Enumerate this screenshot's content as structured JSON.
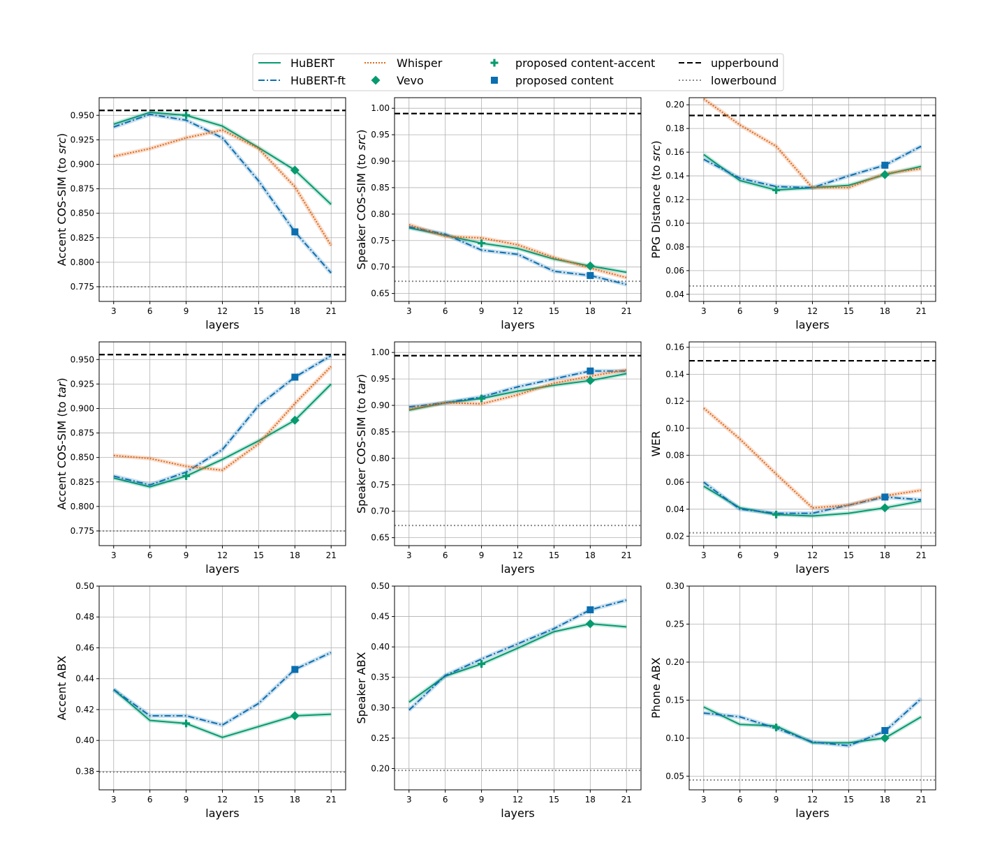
{
  "colors": {
    "hubert": "#069a6f",
    "hubert_ft": "#0a6eb0",
    "whisper": "#e0681a",
    "upperbound": "#000000",
    "lowerbound": "#888888",
    "grid": "#b0b0b0"
  },
  "legend": {
    "items": [
      {
        "key": "hubert",
        "label": "HuBERT",
        "kind": "line",
        "color": "#069a6f",
        "dash": ""
      },
      {
        "key": "hubert_ft",
        "label": "HuBERT-ft",
        "kind": "line",
        "color": "#0a6eb0",
        "dash": "9,3,2,3"
      },
      {
        "key": "whisper",
        "label": "Whisper",
        "kind": "line",
        "color": "#e0681a",
        "dash": "2,2"
      },
      {
        "key": "vevo",
        "label": "Vevo",
        "kind": "diamond",
        "color": "#069a6f",
        "dash": ""
      },
      {
        "key": "prop_ca",
        "label": "proposed content-accent",
        "kind": "plus",
        "color": "#069a6f",
        "dash": ""
      },
      {
        "key": "prop_c",
        "label": "proposed content",
        "kind": "square",
        "color": "#0a6eb0",
        "dash": ""
      },
      {
        "key": "upper",
        "label": "upperbound",
        "kind": "line",
        "color": "#000000",
        "dash": "8,4"
      },
      {
        "key": "lower",
        "label": "lowerbound",
        "kind": "line",
        "color": "#888888",
        "dash": "2,3"
      }
    ]
  },
  "chart_data": [
    {
      "type": "line",
      "ylabel": "Accent COS-SIM (to ",
      "ylabel_em": "src",
      "ylabel_end": ")",
      "xlabel": "layers",
      "x": [
        3,
        6,
        9,
        12,
        15,
        18,
        21
      ],
      "ylim": [
        0.76,
        0.968
      ],
      "yticks": [
        0.775,
        0.8,
        0.825,
        0.85,
        0.875,
        0.9,
        0.925,
        0.95
      ],
      "ytick_labels": [
        "0.775",
        "0.800",
        "0.825",
        "0.850",
        "0.875",
        "0.900",
        "0.925",
        "0.950"
      ],
      "upperbound": 0.955,
      "lowerbound": 0.775,
      "series": [
        {
          "key": "hubert",
          "values": [
            0.941,
            0.953,
            0.95,
            0.939,
            0.917,
            0.894,
            0.859
          ]
        },
        {
          "key": "hubert_ft",
          "values": [
            0.938,
            0.951,
            0.945,
            0.927,
            0.883,
            0.831,
            0.789
          ]
        },
        {
          "key": "whisper",
          "values": [
            0.908,
            0.916,
            0.927,
            0.935,
            0.916,
            0.877,
            0.817
          ]
        }
      ],
      "markers": [
        {
          "kind": "plus",
          "color": "#069a6f",
          "x": 9,
          "y": 0.95
        },
        {
          "kind": "diamond",
          "color": "#069a6f",
          "x": 18,
          "y": 0.894
        },
        {
          "kind": "square",
          "color": "#0a6eb0",
          "x": 18,
          "y": 0.831
        }
      ]
    },
    {
      "type": "line",
      "ylabel": "Speaker COS-SIM (to ",
      "ylabel_em": "src",
      "ylabel_end": ")",
      "xlabel": "layers",
      "x": [
        3,
        6,
        9,
        12,
        15,
        18,
        21
      ],
      "ylim": [
        0.635,
        1.02
      ],
      "yticks": [
        0.65,
        0.7,
        0.75,
        0.8,
        0.85,
        0.9,
        0.95,
        1.0
      ],
      "ytick_labels": [
        "0.65",
        "0.70",
        "0.75",
        "0.80",
        "0.85",
        "0.90",
        "0.95",
        "1.00"
      ],
      "upperbound": 0.99,
      "lowerbound": 0.673,
      "series": [
        {
          "key": "hubert",
          "values": [
            0.774,
            0.76,
            0.745,
            0.735,
            0.715,
            0.702,
            0.69
          ]
        },
        {
          "key": "hubert_ft",
          "values": [
            0.776,
            0.762,
            0.732,
            0.724,
            0.692,
            0.684,
            0.667
          ]
        },
        {
          "key": "whisper",
          "values": [
            0.78,
            0.758,
            0.755,
            0.742,
            0.718,
            0.698,
            0.68
          ]
        }
      ],
      "markers": [
        {
          "kind": "plus",
          "color": "#069a6f",
          "x": 9,
          "y": 0.745
        },
        {
          "kind": "diamond",
          "color": "#069a6f",
          "x": 18,
          "y": 0.702
        },
        {
          "kind": "square",
          "color": "#0a6eb0",
          "x": 18,
          "y": 0.684
        }
      ]
    },
    {
      "type": "line",
      "ylabel": "PPG Distance (to ",
      "ylabel_em": "src",
      "ylabel_end": ")",
      "xlabel": "layers",
      "x": [
        3,
        6,
        9,
        12,
        15,
        18,
        21
      ],
      "ylim": [
        0.034,
        0.206
      ],
      "yticks": [
        0.04,
        0.06,
        0.08,
        0.1,
        0.12,
        0.14,
        0.16,
        0.18,
        0.2
      ],
      "ytick_labels": [
        "0.04",
        "0.06",
        "0.08",
        "0.10",
        "0.12",
        "0.14",
        "0.16",
        "0.18",
        "0.20"
      ],
      "upperbound": 0.191,
      "lowerbound": 0.047,
      "series": [
        {
          "key": "hubert",
          "values": [
            0.158,
            0.136,
            0.128,
            0.13,
            0.132,
            0.141,
            0.148
          ]
        },
        {
          "key": "hubert_ft",
          "values": [
            0.154,
            0.138,
            0.131,
            0.13,
            0.14,
            0.149,
            0.165
          ]
        },
        {
          "key": "whisper",
          "values": [
            0.205,
            0.183,
            0.165,
            0.13,
            0.13,
            0.142,
            0.146
          ]
        }
      ],
      "markers": [
        {
          "kind": "plus",
          "color": "#069a6f",
          "x": 9,
          "y": 0.128
        },
        {
          "kind": "diamond",
          "color": "#069a6f",
          "x": 18,
          "y": 0.141
        },
        {
          "kind": "square",
          "color": "#0a6eb0",
          "x": 18,
          "y": 0.149
        }
      ]
    },
    {
      "type": "line",
      "ylabel": "Accent COS-SIM (to ",
      "ylabel_em": "tar",
      "ylabel_end": ")",
      "xlabel": "layers",
      "x": [
        3,
        6,
        9,
        12,
        15,
        18,
        21
      ],
      "ylim": [
        0.76,
        0.968
      ],
      "yticks": [
        0.775,
        0.8,
        0.825,
        0.85,
        0.875,
        0.9,
        0.925,
        0.95
      ],
      "ytick_labels": [
        "0.775",
        "0.800",
        "0.825",
        "0.850",
        "0.875",
        "0.900",
        "0.925",
        "0.950"
      ],
      "upperbound": 0.955,
      "lowerbound": 0.775,
      "series": [
        {
          "key": "hubert",
          "values": [
            0.829,
            0.82,
            0.831,
            0.848,
            0.867,
            0.888,
            0.925
          ]
        },
        {
          "key": "hubert_ft",
          "values": [
            0.831,
            0.822,
            0.835,
            0.858,
            0.903,
            0.932,
            0.954
          ]
        },
        {
          "key": "whisper",
          "values": [
            0.852,
            0.849,
            0.841,
            0.837,
            0.864,
            0.905,
            0.943
          ]
        }
      ],
      "markers": [
        {
          "kind": "plus",
          "color": "#069a6f",
          "x": 9,
          "y": 0.831
        },
        {
          "kind": "diamond",
          "color": "#069a6f",
          "x": 18,
          "y": 0.888
        },
        {
          "kind": "square",
          "color": "#0a6eb0",
          "x": 18,
          "y": 0.932
        }
      ]
    },
    {
      "type": "line",
      "ylabel": "Speaker COS-SIM (to ",
      "ylabel_em": "tar",
      "ylabel_end": ")",
      "xlabel": "layers",
      "x": [
        3,
        6,
        9,
        12,
        15,
        18,
        21
      ],
      "ylim": [
        0.635,
        1.02
      ],
      "yticks": [
        0.65,
        0.7,
        0.75,
        0.8,
        0.85,
        0.9,
        0.95,
        1.0
      ],
      "ytick_labels": [
        "0.65",
        "0.70",
        "0.75",
        "0.80",
        "0.85",
        "0.90",
        "0.95",
        "1.00"
      ],
      "upperbound": 0.994,
      "lowerbound": 0.673,
      "series": [
        {
          "key": "hubert",
          "values": [
            0.891,
            0.905,
            0.913,
            0.927,
            0.938,
            0.947,
            0.96
          ]
        },
        {
          "key": "hubert_ft",
          "values": [
            0.897,
            0.905,
            0.916,
            0.935,
            0.95,
            0.965,
            0.965
          ]
        },
        {
          "key": "whisper",
          "values": [
            0.893,
            0.905,
            0.903,
            0.92,
            0.942,
            0.955,
            0.967
          ]
        }
      ],
      "markers": [
        {
          "kind": "plus",
          "color": "#069a6f",
          "x": 9,
          "y": 0.913
        },
        {
          "kind": "diamond",
          "color": "#069a6f",
          "x": 18,
          "y": 0.947
        },
        {
          "kind": "square",
          "color": "#0a6eb0",
          "x": 18,
          "y": 0.965
        }
      ]
    },
    {
      "type": "line",
      "ylabel": "WER",
      "ylabel_em": "",
      "ylabel_end": "",
      "xlabel": "layers",
      "x": [
        3,
        6,
        9,
        12,
        15,
        18,
        21
      ],
      "ylim": [
        0.013,
        0.164
      ],
      "yticks": [
        0.02,
        0.04,
        0.06,
        0.08,
        0.1,
        0.12,
        0.14,
        0.16
      ],
      "ytick_labels": [
        "0.02",
        "0.04",
        "0.06",
        "0.08",
        "0.10",
        "0.12",
        "0.14",
        "0.16"
      ],
      "upperbound": 0.15,
      "lowerbound": 0.0225,
      "series": [
        {
          "key": "hubert",
          "values": [
            0.057,
            0.041,
            0.036,
            0.035,
            0.037,
            0.041,
            0.046
          ]
        },
        {
          "key": "hubert_ft",
          "values": [
            0.06,
            0.04,
            0.037,
            0.037,
            0.043,
            0.049,
            0.047
          ]
        },
        {
          "key": "whisper",
          "values": [
            0.115,
            0.092,
            0.066,
            0.041,
            0.043,
            0.05,
            0.054
          ]
        }
      ],
      "markers": [
        {
          "kind": "plus",
          "color": "#069a6f",
          "x": 9,
          "y": 0.036
        },
        {
          "kind": "diamond",
          "color": "#069a6f",
          "x": 18,
          "y": 0.041
        },
        {
          "kind": "square",
          "color": "#0a6eb0",
          "x": 18,
          "y": 0.049
        }
      ]
    },
    {
      "type": "line",
      "ylabel": "Accent ABX",
      "ylabel_em": "",
      "ylabel_end": "",
      "xlabel": "layers",
      "x": [
        3,
        6,
        9,
        12,
        15,
        18,
        21
      ],
      "ylim": [
        0.368,
        0.5
      ],
      "yticks": [
        0.38,
        0.4,
        0.42,
        0.44,
        0.46,
        0.48,
        0.5
      ],
      "ytick_labels": [
        "0.38",
        "0.40",
        "0.42",
        "0.44",
        "0.46",
        "0.48",
        "0.50"
      ],
      "upperbound": null,
      "lowerbound": 0.3795,
      "series": [
        {
          "key": "hubert",
          "values": [
            0.433,
            0.413,
            0.411,
            0.402,
            0.409,
            0.416,
            0.417
          ]
        },
        {
          "key": "hubert_ft",
          "values": [
            0.433,
            0.416,
            0.416,
            0.41,
            0.424,
            0.446,
            0.457
          ]
        }
      ],
      "markers": [
        {
          "kind": "plus",
          "color": "#069a6f",
          "x": 9,
          "y": 0.411
        },
        {
          "kind": "diamond",
          "color": "#069a6f",
          "x": 18,
          "y": 0.416
        },
        {
          "kind": "square",
          "color": "#0a6eb0",
          "x": 18,
          "y": 0.446
        }
      ]
    },
    {
      "type": "line",
      "ylabel": "Speaker ABX",
      "ylabel_em": "",
      "ylabel_end": "",
      "xlabel": "layers",
      "x": [
        3,
        6,
        9,
        12,
        15,
        18,
        21
      ],
      "ylim": [
        0.165,
        0.5
      ],
      "yticks": [
        0.2,
        0.25,
        0.3,
        0.35,
        0.4,
        0.45,
        0.5
      ],
      "ytick_labels": [
        "0.20",
        "0.25",
        "0.30",
        "0.35",
        "0.40",
        "0.45",
        "0.50"
      ],
      "upperbound": null,
      "lowerbound": 0.197,
      "series": [
        {
          "key": "hubert",
          "values": [
            0.309,
            0.352,
            0.372,
            0.398,
            0.425,
            0.438,
            0.433
          ]
        },
        {
          "key": "hubert_ft",
          "values": [
            0.296,
            0.353,
            0.38,
            0.405,
            0.43,
            0.461,
            0.477
          ]
        }
      ],
      "markers": [
        {
          "kind": "plus",
          "color": "#069a6f",
          "x": 9,
          "y": 0.372
        },
        {
          "kind": "diamond",
          "color": "#069a6f",
          "x": 18,
          "y": 0.438
        },
        {
          "kind": "square",
          "color": "#0a6eb0",
          "x": 18,
          "y": 0.461
        }
      ]
    },
    {
      "type": "line",
      "ylabel": "Phone ABX",
      "ylabel_em": "",
      "ylabel_end": "",
      "xlabel": "layers",
      "x": [
        3,
        6,
        9,
        12,
        15,
        18,
        21
      ],
      "ylim": [
        0.032,
        0.3
      ],
      "yticks": [
        0.05,
        0.1,
        0.15,
        0.2,
        0.25,
        0.3
      ],
      "ytick_labels": [
        "0.05",
        "0.10",
        "0.15",
        "0.20",
        "0.25",
        "0.30"
      ],
      "upperbound": null,
      "lowerbound": 0.045,
      "series": [
        {
          "key": "hubert",
          "values": [
            0.141,
            0.118,
            0.116,
            0.094,
            0.094,
            0.1,
            0.128
          ]
        },
        {
          "key": "hubert_ft",
          "values": [
            0.133,
            0.128,
            0.113,
            0.095,
            0.09,
            0.109,
            0.152
          ]
        }
      ],
      "markers": [
        {
          "kind": "plus",
          "color": "#069a6f",
          "x": 9,
          "y": 0.114
        },
        {
          "kind": "diamond",
          "color": "#069a6f",
          "x": 18,
          "y": 0.1
        },
        {
          "kind": "square",
          "color": "#0a6eb0",
          "x": 18,
          "y": 0.11
        }
      ]
    }
  ]
}
